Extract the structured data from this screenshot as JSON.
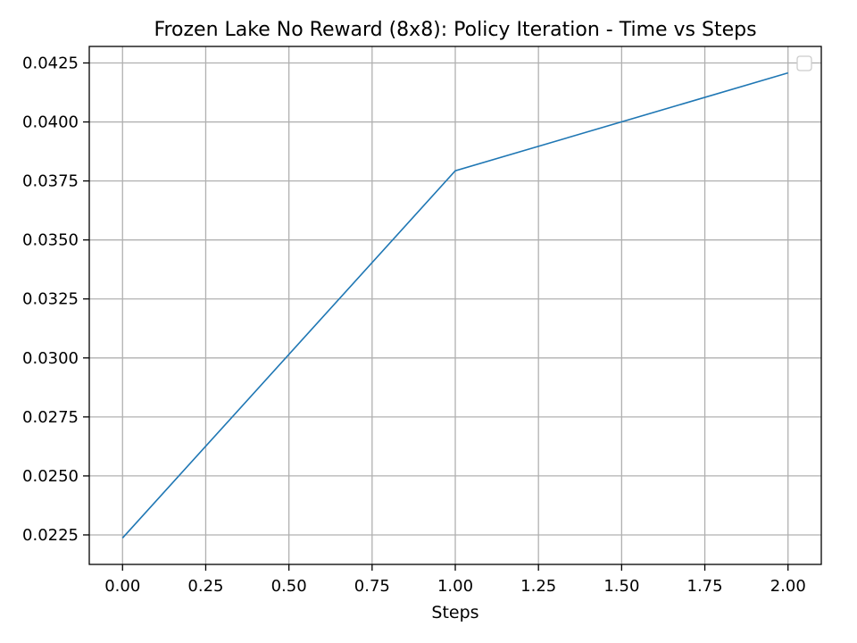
{
  "chart_data": {
    "type": "line",
    "title": "Frozen Lake No Reward (8x8): Policy Iteration - Time vs Steps",
    "xlabel": "Steps",
    "ylabel": "",
    "x": [
      0,
      1,
      2
    ],
    "series": [
      {
        "values": [
          0.02237,
          0.03793,
          0.04208
        ],
        "color": "#1f77b4"
      }
    ],
    "xlim": [
      -0.1,
      2.1
    ],
    "ylim": [
      0.02125,
      0.0432
    ],
    "xticks": [
      0.0,
      0.25,
      0.5,
      0.75,
      1.0,
      1.25,
      1.5,
      1.75,
      2.0
    ],
    "xtick_labels": [
      "0.00",
      "0.25",
      "0.50",
      "0.75",
      "1.00",
      "1.25",
      "1.50",
      "1.75",
      "2.00"
    ],
    "yticks": [
      0.0225,
      0.025,
      0.0275,
      0.03,
      0.0325,
      0.035,
      0.0375,
      0.04,
      0.0425
    ],
    "ytick_labels": [
      "0.0225",
      "0.0250",
      "0.0275",
      "0.0300",
      "0.0325",
      "0.0350",
      "0.0375",
      "0.0400",
      "0.0425"
    ],
    "grid": true,
    "legend": {
      "placement": "top-right",
      "entries": []
    }
  }
}
